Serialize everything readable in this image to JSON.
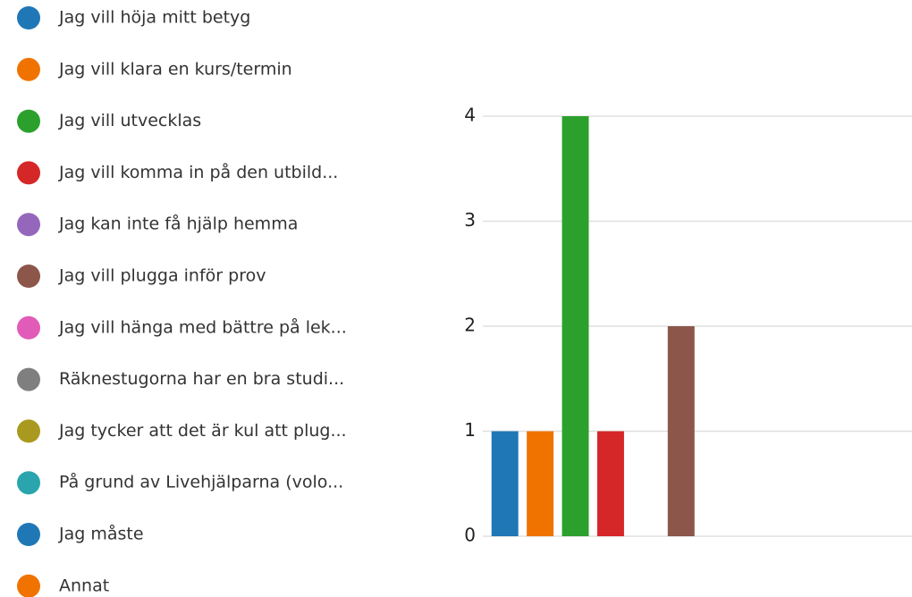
{
  "chart_data": {
    "type": "bar",
    "categories": [
      "Jag vill höja mitt betyg",
      "Jag vill klara en kurs/termin",
      "Jag vill utvecklas",
      "Jag vill komma in på den utbild...",
      "Jag kan inte få hjälp hemma",
      "Jag vill plugga inför prov",
      "Jag vill hänga med bättre på lek...",
      "Räknestugorna har en bra studi...",
      "Jag tycker att det är kul att plug...",
      "På grund av Livehjälparna (volo...",
      "Jag måste",
      "Annat"
    ],
    "values": [
      1,
      1,
      4,
      1,
      0,
      2,
      0,
      0,
      0,
      0,
      0,
      0
    ],
    "colors": [
      "#2077b6",
      "#f07300",
      "#2ca02c",
      "#d62728",
      "#9467bd",
      "#8c564b",
      "#e05cb8",
      "#7f7f7f",
      "#a99a1f",
      "#2aa5ad",
      "#2077b6",
      "#f07300"
    ],
    "ylim": [
      0,
      4
    ],
    "yticks": [
      0,
      1,
      2,
      3,
      4
    ],
    "grid": true,
    "legend": "left"
  }
}
